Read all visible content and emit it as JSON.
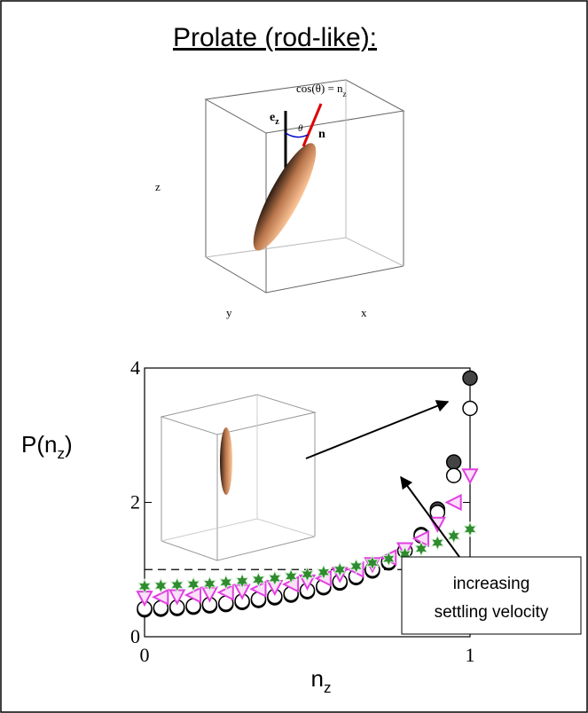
{
  "chart_data": {
    "type": "scatter",
    "title": "Prolate (rod-like):",
    "illustration_labels": {
      "z": "z",
      "y": "y",
      "x": "x",
      "equation": [
        "cos(θ) = n",
        "z"
      ],
      "ez": [
        "e",
        "z"
      ],
      "theta": "θ",
      "n": "n"
    },
    "xlabel": [
      "n",
      "z"
    ],
    "ylabel": [
      "P(n",
      "z",
      ")"
    ],
    "annotation": [
      "increasing",
      "settling velocity"
    ],
    "xlim": [
      0,
      1
    ],
    "ylim": [
      0,
      4
    ],
    "xticks": [
      0,
      1
    ],
    "yticks": [
      0,
      2,
      4
    ],
    "hline": 1,
    "x": [
      0,
      0.05,
      0.1,
      0.15,
      0.2,
      0.25,
      0.3,
      0.35,
      0.4,
      0.45,
      0.5,
      0.55,
      0.6,
      0.65,
      0.7,
      0.75,
      0.8,
      0.85,
      0.9,
      0.95,
      1
    ],
    "series": [
      {
        "color": "#444444",
        "marker": "circle",
        "filled": true,
        "values": [
          0.4,
          0.41,
          0.42,
          0.44,
          0.46,
          0.48,
          0.51,
          0.54,
          0.58,
          0.62,
          0.67,
          0.73,
          0.8,
          0.88,
          0.98,
          1.1,
          1.28,
          1.52,
          1.9,
          2.6,
          3.85
        ]
      },
      {
        "color": "#000000",
        "marker": "circle",
        "filled": false,
        "values": [
          0.42,
          0.43,
          0.44,
          0.46,
          0.48,
          0.5,
          0.53,
          0.56,
          0.6,
          0.64,
          0.69,
          0.75,
          0.82,
          0.9,
          1.0,
          1.12,
          1.28,
          1.5,
          1.85,
          2.4,
          3.4
        ]
      },
      {
        "color": "#e040e0",
        "marker": "triangle",
        "filled": false,
        "values": [
          0.58,
          0.59,
          0.6,
          0.62,
          0.64,
          0.66,
          0.68,
          0.71,
          0.74,
          0.78,
          0.82,
          0.87,
          0.93,
          1.0,
          1.08,
          1.18,
          1.3,
          1.46,
          1.68,
          2.0,
          2.4
        ]
      },
      {
        "color": "#2e8b2e",
        "marker": "star",
        "filled": true,
        "values": [
          0.75,
          0.76,
          0.77,
          0.78,
          0.79,
          0.81,
          0.83,
          0.85,
          0.87,
          0.9,
          0.93,
          0.96,
          1.0,
          1.05,
          1.1,
          1.16,
          1.23,
          1.31,
          1.4,
          1.5,
          1.6
        ]
      }
    ]
  }
}
